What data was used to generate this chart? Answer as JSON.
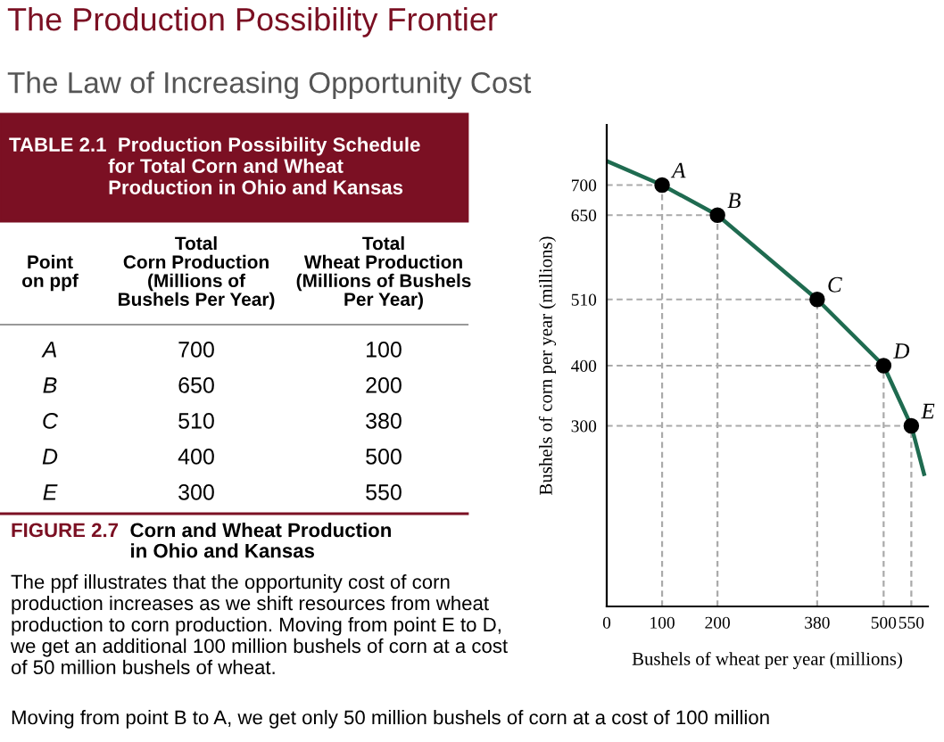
{
  "chart_data": [
    {
      "type": "other",
      "title": "The Production Possibility Frontier",
      "subtitle": "The Law of Increasing Opportunity Cost",
      "annotations": [
        "TABLE 2.1  Production Possibility Schedule\n                  for Total Corn and Wheat\n                  Production in Ohio and Kansas",
        "Point\non ppf",
        "Total\nCorn Production\n(Millions of\nBushels Per Year)",
        "Total\nWheat Production\n(Millions of Bushels\nPer Year)",
        "A",
        "700",
        "100",
        "B",
        "650",
        "200",
        "C",
        "510",
        "380",
        "D",
        "400",
        "500",
        "E",
        "300",
        "550",
        "FIGURE 2.7",
        "Corn and Wheat Production\nin Ohio and Kansas",
        "The ppf illustrates that the opportunity cost of corn\nproduction increases as we shift resources from wheat\nproduction to corn production. Moving from point E to D,\nwe get an additional 100 million bushels of corn at a cost\nof 50 million bushels of wheat.",
        "Moving from point B to A, we get only 50 million bushels of corn at a cost of 100 million"
      ]
    },
    {
      "type": "scatter",
      "xlabel": "Bushels of wheat per year (millions)",
      "ylabel": "Bushels of corn per year (millions)",
      "xlim": [
        0,
        580
      ],
      "ylim": [
        0,
        800
      ],
      "xticks": [
        0,
        100,
        200,
        380,
        500,
        550
      ],
      "yticks": [
        300,
        400,
        510,
        650,
        700
      ],
      "grid": true,
      "legend": false,
      "series": [
        {
          "type": "line",
          "color": "#1f6b50",
          "line_style": "solid",
          "x": [
            0,
            100,
            200,
            380,
            500,
            550,
            573
          ],
          "values": [
            740,
            700,
            650,
            510,
            400,
            300,
            220
          ]
        },
        {
          "color": "#000000",
          "marker": "circle",
          "x": [
            100,
            200,
            380,
            500,
            550
          ],
          "values": [
            700,
            650,
            510,
            400,
            300
          ]
        }
      ],
      "annotations": [
        {
          "text": "A",
          "x": 100,
          "y": 700
        },
        {
          "text": "B",
          "x": 200,
          "y": 650
        },
        {
          "text": "C",
          "x": 380,
          "y": 510
        },
        {
          "text": "D",
          "x": 500,
          "y": 400
        },
        {
          "text": "E",
          "x": 550,
          "y": 300
        }
      ]
    }
  ]
}
